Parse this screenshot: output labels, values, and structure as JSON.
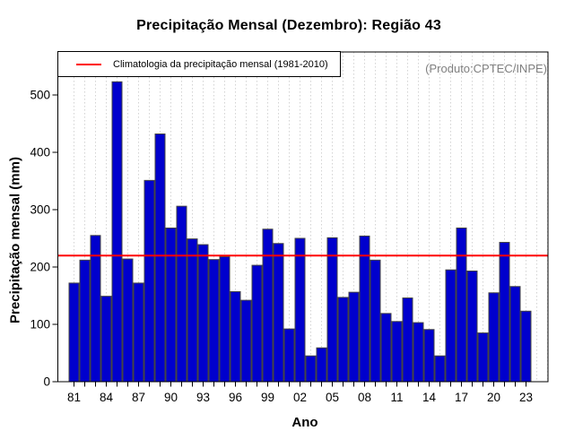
{
  "chart_data": {
    "type": "bar",
    "title": "Precipitação Mensal (Dezembro): Região 43",
    "xlabel": "Ano",
    "ylabel": "Precipitação mensal (mm)",
    "annotation": "(Produto:CPTEC/INPE)",
    "legend": "Climatologia da precipitação mensal (1981-2010)",
    "legend_position": "top-left",
    "grid": "vertical-dotted",
    "categories": [
      "81",
      "82",
      "83",
      "84",
      "85",
      "86",
      "87",
      "88",
      "89",
      "90",
      "91",
      "92",
      "93",
      "94",
      "95",
      "96",
      "97",
      "98",
      "99",
      "00",
      "01",
      "02",
      "03",
      "04",
      "05",
      "06",
      "07",
      "08",
      "09",
      "10",
      "11",
      "12",
      "13",
      "14",
      "15",
      "16",
      "17",
      "18",
      "19",
      "20",
      "21",
      "22",
      "23"
    ],
    "values": [
      172,
      212,
      255,
      149,
      523,
      214,
      172,
      351,
      432,
      268,
      306,
      249,
      239,
      213,
      218,
      157,
      142,
      203,
      266,
      241,
      92,
      250,
      45,
      59,
      251,
      147,
      156,
      254,
      212,
      119,
      105,
      146,
      103,
      91,
      45,
      195,
      268,
      193,
      85,
      155,
      243,
      166,
      123
    ],
    "climatology_line": 220,
    "ylim": [
      0,
      575
    ],
    "yticks": [
      0,
      100,
      200,
      300,
      400,
      500
    ],
    "xtick_label_step": 3,
    "colors": {
      "bar": "#0000CD",
      "bar_border": "#444444",
      "climatology": "#FF0000",
      "grid": "#D3D3D3",
      "annotation": "#7F7F7F",
      "box": "#000000"
    }
  }
}
